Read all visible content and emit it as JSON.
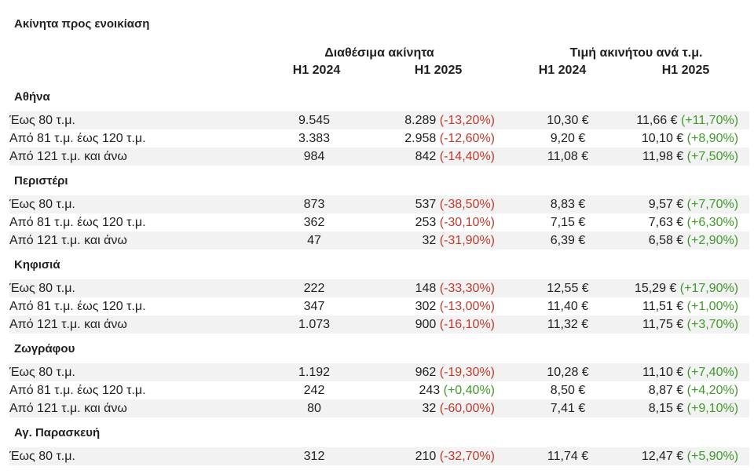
{
  "title": "Ακίνητα προς ενοικίαση",
  "groups": {
    "available": "Διαθέσιμα ακίνητα",
    "price": "Τιμή ακινήτου ανά τ.μ."
  },
  "columns": [
    "H1 2024",
    "H1 2025",
    "H1 2024",
    "H1 2025"
  ],
  "sections": [
    {
      "name": "Αθήνα",
      "rows": [
        {
          "label": "Έως 80 τ.μ.",
          "avail_2024": "9.545",
          "avail_2025": "8.289",
          "avail_change": "(-13,20%)",
          "avail_trend": "neg",
          "price_2024": "10,30 €",
          "price_2025": "11,66 €",
          "price_change": "(+11,70%)",
          "price_trend": "pos"
        },
        {
          "label": "Από 81 τ.μ. έως 120 τ.μ.",
          "avail_2024": "3.383",
          "avail_2025": "2.958",
          "avail_change": "(-12,60%)",
          "avail_trend": "neg",
          "price_2024": "9,20 €",
          "price_2025": "10,10 €",
          "price_change": "(+8,90%)",
          "price_trend": "pos"
        },
        {
          "label": "Από 121 τ.μ. και άνω",
          "avail_2024": "984",
          "avail_2025": "842",
          "avail_change": "(-14,40%)",
          "avail_trend": "neg",
          "price_2024": "11,08 €",
          "price_2025": "11,98 €",
          "price_change": "(+7,50%)",
          "price_trend": "pos"
        }
      ]
    },
    {
      "name": "Περιστέρι",
      "rows": [
        {
          "label": "Έως 80 τ.μ.",
          "avail_2024": "873",
          "avail_2025": "537",
          "avail_change": "(-38,50%)",
          "avail_trend": "neg",
          "price_2024": "8,83 €",
          "price_2025": "9,57 €",
          "price_change": "(+7,70%)",
          "price_trend": "pos"
        },
        {
          "label": "Από 81 τ.μ. έως 120 τ.μ.",
          "avail_2024": "362",
          "avail_2025": "253",
          "avail_change": "(-30,10%)",
          "avail_trend": "neg",
          "price_2024": "7,15 €",
          "price_2025": "7,63 €",
          "price_change": "(+6,30%)",
          "price_trend": "pos"
        },
        {
          "label": "Από 121 τ.μ. και άνω",
          "avail_2024": "47",
          "avail_2025": "32",
          "avail_change": "(-31,90%)",
          "avail_trend": "neg",
          "price_2024": "6,39 €",
          "price_2025": "6,58 €",
          "price_change": "(+2,90%)",
          "price_trend": "pos"
        }
      ]
    },
    {
      "name": "Κηφισιά",
      "rows": [
        {
          "label": "Έως 80 τ.μ.",
          "avail_2024": "222",
          "avail_2025": "148",
          "avail_change": "(-33,30%)",
          "avail_trend": "neg",
          "price_2024": "12,55 €",
          "price_2025": "15,29 €",
          "price_change": "(+17,90%)",
          "price_trend": "pos"
        },
        {
          "label": "Από 81 τ.μ. έως 120 τ.μ.",
          "avail_2024": "347",
          "avail_2025": "302",
          "avail_change": "(-13,00%)",
          "avail_trend": "neg",
          "price_2024": "11,40 €",
          "price_2025": "11,51 €",
          "price_change": "(+1,00%)",
          "price_trend": "pos"
        },
        {
          "label": "Από 121 τ.μ. και άνω",
          "avail_2024": "1.073",
          "avail_2025": "900",
          "avail_change": "(-16,10%)",
          "avail_trend": "neg",
          "price_2024": "11,32 €",
          "price_2025": "11,75 €",
          "price_change": "(+3,70%)",
          "price_trend": "pos"
        }
      ]
    },
    {
      "name": "Ζωγράφου",
      "rows": [
        {
          "label": "Έως 80 τ.μ.",
          "avail_2024": "1.192",
          "avail_2025": "962",
          "avail_change": "(-19,30%)",
          "avail_trend": "neg",
          "price_2024": "10,28 €",
          "price_2025": "11,10 €",
          "price_change": "(+7,40%)",
          "price_trend": "pos"
        },
        {
          "label": "Από 81 τ.μ. έως 120 τ.μ.",
          "avail_2024": "242",
          "avail_2025": "243",
          "avail_change": "(+0,40%)",
          "avail_trend": "pos",
          "price_2024": "8,50 €",
          "price_2025": "8,87 €",
          "price_change": "(+4,20%)",
          "price_trend": "pos"
        },
        {
          "label": "Από 121 τ.μ. και άνω",
          "avail_2024": "80",
          "avail_2025": "32",
          "avail_change": "(-60,00%)",
          "avail_trend": "neg",
          "price_2024": "7,41 €",
          "price_2025": "8,15 €",
          "price_change": "(+9,10%)",
          "price_trend": "pos"
        }
      ]
    },
    {
      "name": "Αγ. Παρασκευή",
      "rows": [
        {
          "label": "Έως 80 τ.μ.",
          "avail_2024": "312",
          "avail_2025": "210",
          "avail_change": "(-32,70%)",
          "avail_trend": "neg",
          "price_2024": "11,74 €",
          "price_2025": "12,47 €",
          "price_change": "(+5,90%)",
          "price_trend": "pos"
        }
      ]
    }
  ],
  "colors": {
    "negative": "#c0392b",
    "positive": "#3f9a2a",
    "shade": "#f2f2f2"
  }
}
